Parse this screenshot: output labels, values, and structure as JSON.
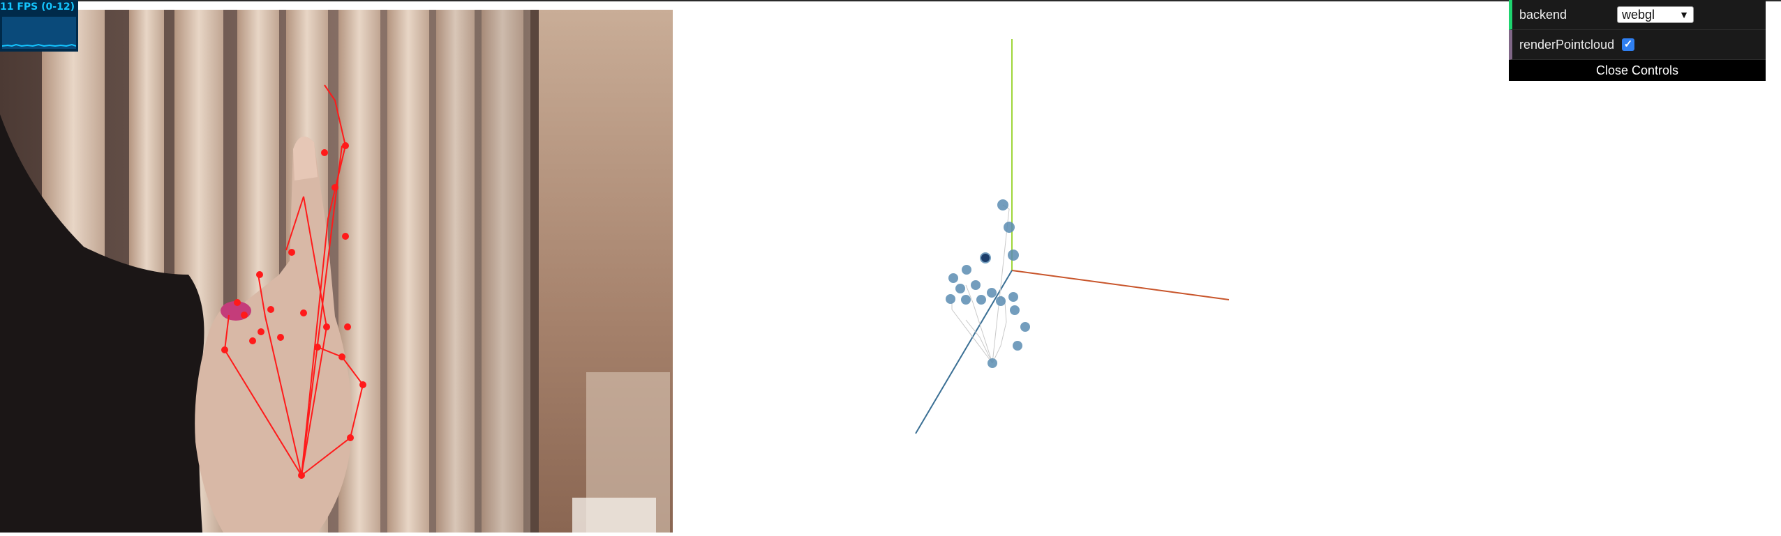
{
  "stats": {
    "fps_label": "11 FPS (0-12)"
  },
  "gui": {
    "backend_label": "backend",
    "backend_value": "webgl",
    "render_pointcloud_label": "renderPointcloud",
    "render_pointcloud_checked": true,
    "close_controls_label": "Close Controls"
  },
  "colors": {
    "keypoint": "#ff1a1a",
    "point_cloud": "#5b8db2",
    "axis_x": "#c8552b",
    "axis_y": "#9fd63a",
    "axis_z": "#3a6f94",
    "gui_background": "#1a1a1a",
    "select_accent": "#1ed36f",
    "check_accent": "#806787"
  }
}
